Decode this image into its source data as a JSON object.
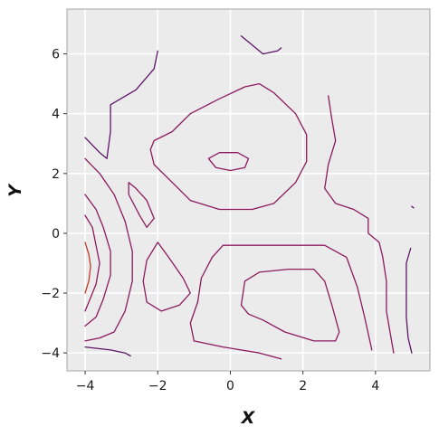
{
  "chart_data": {
    "type": "contour",
    "title": "",
    "xlabel": "X",
    "ylabel": "Y",
    "xlim": [
      -4.5,
      5.5
    ],
    "ylim": [
      -4.6,
      7.5
    ],
    "xticks": [
      -4,
      -2,
      0,
      2,
      4
    ],
    "yticks": [
      -4,
      -2,
      0,
      2,
      4,
      6
    ],
    "grid": true,
    "colors": {
      "panel": "#ebebeb",
      "frame": "#a6a6a6",
      "grid": "#ffffff",
      "level_low": "#5e1468",
      "level_mid": "#8c1a5e",
      "level_high": "#c0392b"
    },
    "contours": [
      {
        "level": "low",
        "points": [
          [
            -2.0,
            6.1
          ],
          [
            -2.1,
            5.5
          ],
          [
            -2.6,
            4.8
          ],
          [
            -3.3,
            4.3
          ],
          [
            -3.3,
            3.4
          ],
          [
            -3.4,
            2.5
          ],
          [
            -3.6,
            2.7
          ],
          [
            -4.0,
            3.2
          ]
        ]
      },
      {
        "level": "low",
        "points": [
          [
            0.3,
            6.6
          ],
          [
            0.9,
            6.0
          ],
          [
            1.3,
            6.1
          ],
          [
            1.4,
            6.2
          ]
        ]
      },
      {
        "level": "mid",
        "points": [
          [
            -2.1,
            3.1
          ],
          [
            -1.6,
            3.4
          ],
          [
            -1.1,
            4.0
          ],
          [
            -0.3,
            4.5
          ],
          [
            0.4,
            4.9
          ],
          [
            0.8,
            5.0
          ],
          [
            1.2,
            4.7
          ],
          [
            1.8,
            4.0
          ],
          [
            2.1,
            3.3
          ],
          [
            2.1,
            2.4
          ],
          [
            1.8,
            1.7
          ],
          [
            1.2,
            1.0
          ],
          [
            0.6,
            0.8
          ],
          [
            -0.3,
            0.8
          ],
          [
            -1.1,
            1.1
          ],
          [
            -1.6,
            1.7
          ],
          [
            -2.1,
            2.3
          ],
          [
            -2.2,
            2.8
          ],
          [
            -2.1,
            3.1
          ]
        ]
      },
      {
        "level": "mid",
        "points": [
          [
            -0.6,
            2.5
          ],
          [
            -0.3,
            2.7
          ],
          [
            0.2,
            2.7
          ],
          [
            0.5,
            2.5
          ],
          [
            0.4,
            2.2
          ],
          [
            0.0,
            2.1
          ],
          [
            -0.4,
            2.2
          ],
          [
            -0.6,
            2.5
          ]
        ]
      },
      {
        "level": "mid",
        "points": [
          [
            -2.8,
            1.7
          ],
          [
            -2.6,
            1.5
          ],
          [
            -2.3,
            1.1
          ],
          [
            -2.1,
            0.5
          ],
          [
            -2.3,
            0.2
          ],
          [
            -2.5,
            0.6
          ],
          [
            -2.8,
            1.3
          ],
          [
            -2.8,
            1.7
          ]
        ]
      },
      {
        "level": "mid",
        "points": [
          [
            -4.0,
            2.5
          ],
          [
            -3.6,
            2.0
          ],
          [
            -3.2,
            1.3
          ],
          [
            -2.9,
            0.4
          ],
          [
            -2.7,
            -0.6
          ],
          [
            -2.7,
            -1.6
          ],
          [
            -2.9,
            -2.6
          ],
          [
            -3.2,
            -3.3
          ],
          [
            -3.6,
            -3.5
          ],
          [
            -4.0,
            -3.6
          ]
        ]
      },
      {
        "level": "mid",
        "points": [
          [
            -2.0,
            -0.3
          ],
          [
            -1.7,
            -0.8
          ],
          [
            -1.3,
            -1.5
          ],
          [
            -1.1,
            -2.0
          ],
          [
            -1.4,
            -2.4
          ],
          [
            -1.9,
            -2.6
          ],
          [
            -2.3,
            -2.3
          ],
          [
            -2.4,
            -1.6
          ],
          [
            -2.3,
            -0.9
          ],
          [
            -2.0,
            -0.3
          ]
        ]
      },
      {
        "level": "mid",
        "points": [
          [
            -0.5,
            -0.8
          ],
          [
            -0.2,
            -0.4
          ],
          [
            0.6,
            -0.4
          ],
          [
            1.6,
            -0.4
          ],
          [
            2.6,
            -0.4
          ],
          [
            3.2,
            -0.8
          ],
          [
            3.5,
            -1.8
          ],
          [
            3.7,
            -2.8
          ],
          [
            3.9,
            -3.9
          ]
        ]
      },
      {
        "level": "mid",
        "points": [
          [
            -0.5,
            -0.8
          ],
          [
            -0.8,
            -1.5
          ],
          [
            -0.9,
            -2.3
          ],
          [
            -1.1,
            -3.0
          ],
          [
            -1.0,
            -3.6
          ],
          [
            -0.2,
            -3.8
          ],
          [
            0.8,
            -4.0
          ],
          [
            1.4,
            -4.2
          ]
        ]
      },
      {
        "level": "mid",
        "points": [
          [
            0.3,
            -2.4
          ],
          [
            0.4,
            -1.6
          ],
          [
            0.8,
            -1.3
          ],
          [
            1.6,
            -1.2
          ],
          [
            2.3,
            -1.2
          ],
          [
            2.6,
            -1.6
          ],
          [
            2.8,
            -2.4
          ],
          [
            3.0,
            -3.3
          ],
          [
            2.9,
            -3.6
          ],
          [
            2.3,
            -3.6
          ],
          [
            1.5,
            -3.3
          ],
          [
            0.9,
            -2.9
          ],
          [
            0.5,
            -2.7
          ],
          [
            0.3,
            -2.4
          ]
        ]
      },
      {
        "level": "mid",
        "points": [
          [
            2.7,
            4.6
          ],
          [
            2.8,
            3.8
          ],
          [
            2.9,
            3.1
          ],
          [
            2.7,
            2.3
          ],
          [
            2.6,
            1.5
          ],
          [
            2.9,
            1.0
          ],
          [
            3.4,
            0.8
          ],
          [
            3.8,
            0.5
          ],
          [
            3.8,
            0.0
          ],
          [
            4.1,
            -0.3
          ],
          [
            4.2,
            -0.8
          ],
          [
            4.3,
            -1.6
          ],
          [
            4.3,
            -2.6
          ],
          [
            4.4,
            -3.3
          ],
          [
            4.5,
            -4.0
          ]
        ]
      },
      {
        "level": "low",
        "points": [
          [
            4.97,
            -0.5
          ],
          [
            4.85,
            -1.0
          ],
          [
            4.85,
            -1.8
          ],
          [
            4.85,
            -2.8
          ],
          [
            4.9,
            -3.5
          ],
          [
            5.0,
            -4.0
          ]
        ]
      },
      {
        "level": "low",
        "points": [
          [
            -4.0,
            -3.8
          ],
          [
            -3.3,
            -3.9
          ],
          [
            -2.9,
            -4.0
          ],
          [
            -2.75,
            -4.1
          ]
        ]
      },
      {
        "level": "low",
        "points": [
          [
            5.0,
            0.9
          ],
          [
            5.05,
            0.85
          ]
        ]
      },
      {
        "level": "mid",
        "points": [
          [
            -4.0,
            1.3
          ],
          [
            -3.7,
            0.8
          ],
          [
            -3.5,
            0.2
          ],
          [
            -3.3,
            -0.6
          ],
          [
            -3.3,
            -1.4
          ],
          [
            -3.5,
            -2.2
          ],
          [
            -3.7,
            -2.8
          ],
          [
            -4.0,
            -3.1
          ]
        ]
      },
      {
        "level": "mid",
        "points": [
          [
            -4.0,
            0.6
          ],
          [
            -3.8,
            0.2
          ],
          [
            -3.7,
            -0.4
          ],
          [
            -3.6,
            -1.0
          ],
          [
            -3.7,
            -1.7
          ],
          [
            -3.9,
            -2.3
          ],
          [
            -4.0,
            -2.6
          ]
        ]
      },
      {
        "level": "high",
        "points": [
          [
            -4.0,
            -0.3
          ],
          [
            -3.9,
            -0.7
          ],
          [
            -3.85,
            -1.1
          ],
          [
            -3.9,
            -1.6
          ],
          [
            -4.0,
            -2.0
          ]
        ]
      }
    ]
  }
}
